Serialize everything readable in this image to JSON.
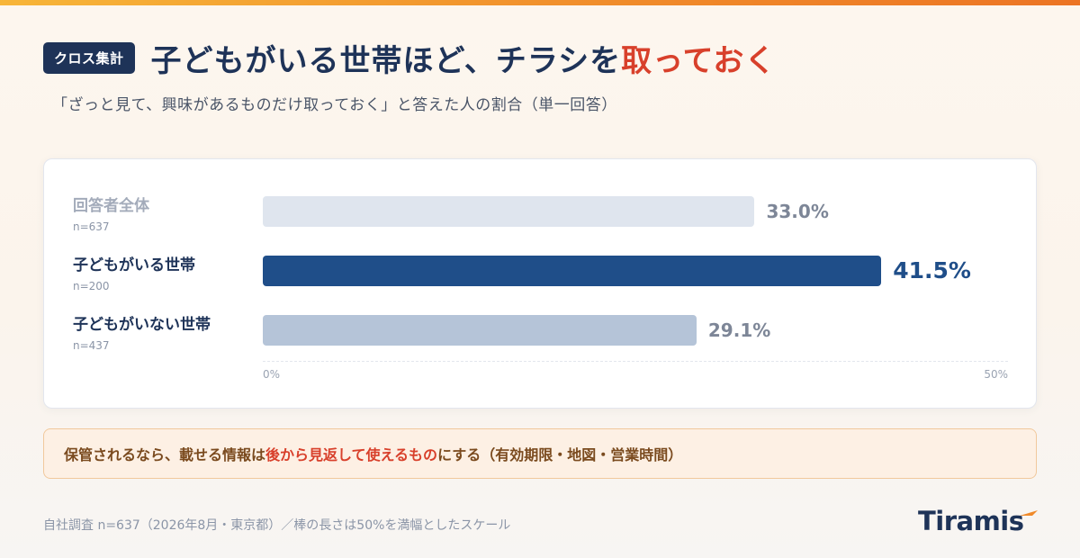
{
  "header": {
    "tag": "クロス集計",
    "title_main": "子どもがいる世帯ほど、チラシを",
    "title_accent": "取っておく",
    "subtitle": "「ざっと見て、興味があるものだけ取っておく」と答えた人の割合（単一回答）"
  },
  "chart_data": {
    "type": "bar",
    "orientation": "horizontal",
    "categories": [
      "回答者全体",
      "子どもがいる世帯",
      "子どもがいない世帯"
    ],
    "sample_sizes": [
      "n=637",
      "n=200",
      "n=437"
    ],
    "values": [
      33.0,
      41.5,
      29.1
    ],
    "value_labels": [
      "33.0%",
      "41.5%",
      "29.1%"
    ],
    "xlim": [
      0,
      50
    ],
    "ticks": [
      "0%",
      "50%"
    ],
    "highlight_index": 1,
    "colors": [
      "#dfe5ee",
      "#1f4e89",
      "#b5c4d8"
    ],
    "label_colors": [
      "#a3abba",
      "#1e3358",
      "#1e3358"
    ],
    "value_colors": [
      "#7d8697",
      "#1f4e89",
      "#7d8697"
    ],
    "grid": false
  },
  "note": {
    "part1": "保管されるなら、載せる情報は",
    "highlight": "後から見返して使えるもの",
    "part2": "にする（有効期限・地図・営業時間）"
  },
  "footer": {
    "text": "自社調査 n=637（2026年8月・東京都）／棒の長さは50%を満幅としたスケール"
  },
  "logo": {
    "text": "Tiramis"
  },
  "colors": {
    "accent": "#d8402b",
    "navy": "#1e3358",
    "orange": "#f08a2a"
  }
}
